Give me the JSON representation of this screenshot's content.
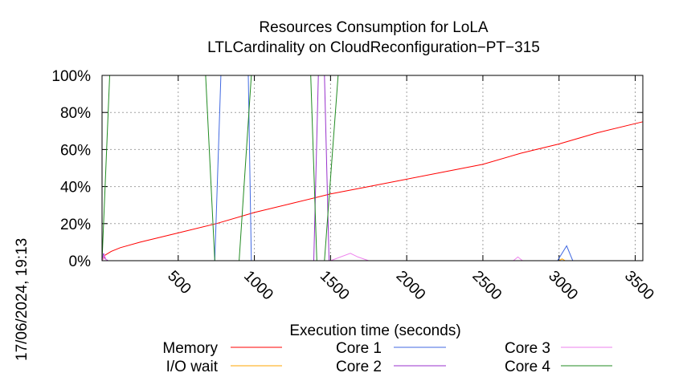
{
  "chart_data": {
    "type": "line",
    "title": "Resources Consumption for LoLA",
    "subtitle": "LTLCardinality on CloudReconfiguration−PT−315",
    "xlabel": "Execution time (seconds)",
    "ylabel": "",
    "timestamp": "17/06/2024, 19:13",
    "xlim": [
      0,
      3550
    ],
    "ylim": [
      0,
      100
    ],
    "grid": true,
    "legend_position": "bottom",
    "x_ticks": [
      500,
      1000,
      1500,
      2000,
      2500,
      3000,
      3500
    ],
    "x_tick_labels": [
      "500",
      "1000",
      "1500",
      "2000",
      "2500",
      "3000",
      "3500"
    ],
    "y_ticks": [
      0,
      20,
      40,
      60,
      80,
      100
    ],
    "y_tick_labels": [
      "0%",
      "20%",
      "40%",
      "60%",
      "80%",
      "100%"
    ],
    "series": [
      {
        "name": "Memory",
        "color": "#ff0000",
        "x": [
          0,
          20,
          60,
          120,
          250,
          500,
          750,
          1000,
          1250,
          1500,
          1750,
          2000,
          2250,
          2500,
          2750,
          3000,
          3250,
          3550
        ],
        "y": [
          0,
          3,
          5,
          7,
          10,
          15,
          20,
          26,
          31,
          36,
          40,
          44,
          48,
          52,
          58,
          63,
          69,
          75
        ]
      },
      {
        "name": "I/O wait",
        "color": "#ffa500",
        "x": [
          0,
          3000,
          3020,
          3040,
          3550
        ],
        "y": [
          0,
          0,
          1,
          0,
          0
        ]
      },
      {
        "name": "Core 1",
        "color": "#4169e1",
        "x": [
          0,
          700,
          720,
          740,
          780,
          940,
          960,
          980,
          1000,
          2990,
          3050,
          3090,
          3550
        ],
        "y": [
          0,
          0,
          0,
          0,
          100,
          100,
          100,
          0,
          0,
          0,
          8,
          0,
          0
        ]
      },
      {
        "name": "Core 2",
        "color": "#9932cc",
        "x": [
          0,
          10,
          20,
          40,
          1390,
          1420,
          1460,
          1490,
          1550,
          3550
        ],
        "y": [
          0,
          4,
          1,
          0,
          0,
          100,
          100,
          0,
          0,
          0
        ]
      },
      {
        "name": "Core 3",
        "color": "#ee82ee",
        "x": [
          0,
          15,
          30,
          1500,
          1630,
          1680,
          1750,
          2700,
          2730,
          2760,
          3550
        ],
        "y": [
          0,
          3,
          0,
          0,
          4,
          2,
          0,
          0,
          2,
          0,
          0
        ]
      },
      {
        "name": "Core 4",
        "color": "#228b22",
        "x": [
          0,
          40,
          50,
          60,
          630,
          680,
          740,
          900,
          980,
          1370,
          1410,
          1460,
          1550,
          3550
        ],
        "y": [
          0,
          80,
          100,
          100,
          100,
          100,
          0,
          0,
          100,
          100,
          0,
          0,
          100,
          100
        ]
      }
    ]
  }
}
